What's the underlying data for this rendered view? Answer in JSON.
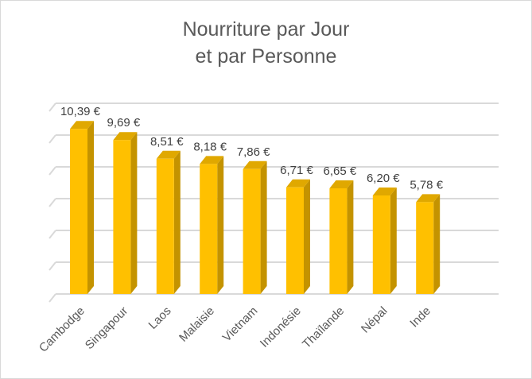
{
  "chart_data": {
    "type": "bar",
    "title_line1": "Nourriture par Jour",
    "title_line2": "et par Personne",
    "categories": [
      "Cambodge",
      "Singapour",
      "Laos",
      "Malaisie",
      "Vietnam",
      "Indonésie",
      "Thaïlande",
      "Népal",
      "Inde"
    ],
    "values": [
      10.39,
      9.69,
      8.51,
      8.18,
      7.86,
      6.71,
      6.65,
      6.2,
      5.78
    ],
    "data_labels": [
      "10,39 €",
      "9,69 €",
      "8,51 €",
      "8,18 €",
      "7,86 €",
      "6,71 €",
      "6,65 €",
      "6,20 €",
      "5,78 €"
    ],
    "ylim": [
      0,
      12
    ],
    "grid": true,
    "legend": "none",
    "bar_color": "#FFC000",
    "bar_side_color": "#C49300",
    "bar_top_color": "#E0A800"
  }
}
